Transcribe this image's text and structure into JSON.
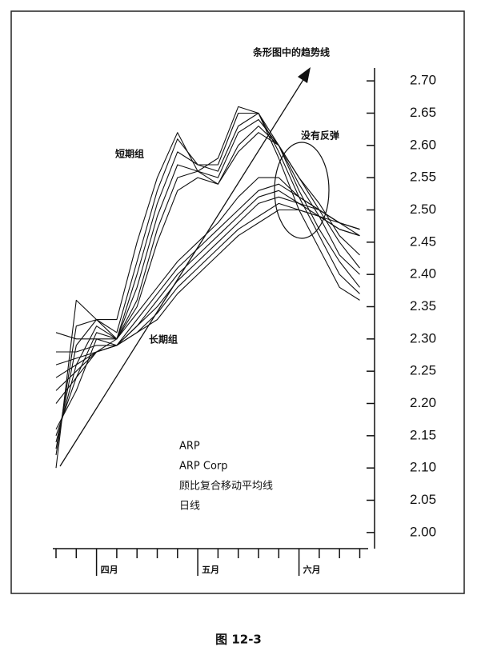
{
  "chart_data": {
    "type": "line",
    "color": "#111111",
    "categories": [
      null,
      null,
      "四月",
      null,
      null,
      null,
      null,
      "五月",
      null,
      null,
      null,
      null,
      "六月",
      null,
      null,
      null
    ],
    "ylim": [
      1.975,
      2.72
    ],
    "yticks": [
      {
        "value": 2.0,
        "label": "2.00"
      },
      2.05,
      {
        "value": 2.1,
        "label": "2.10"
      },
      2.15,
      {
        "value": 2.2,
        "label": "2.20"
      },
      2.25,
      {
        "value": 2.3,
        "label": "2.30"
      },
      2.35,
      {
        "value": 2.4,
        "label": "2.40"
      },
      2.45,
      {
        "value": 2.5,
        "label": "2.50"
      },
      2.55,
      {
        "value": 2.6,
        "label": "2.60"
      },
      2.65,
      {
        "value": 2.7,
        "label": "2.70"
      }
    ],
    "series": [
      {
        "values": [
          2.1,
          2.36,
          2.33,
          2.33,
          2.45,
          2.55,
          2.62,
          2.56,
          2.58,
          2.66,
          2.65,
          2.58,
          2.5,
          2.44,
          2.38,
          2.36
        ]
      },
      {
        "values": [
          2.12,
          2.32,
          2.33,
          2.31,
          2.42,
          2.53,
          2.61,
          2.57,
          2.57,
          2.65,
          2.65,
          2.59,
          2.52,
          2.46,
          2.4,
          2.37
        ]
      },
      {
        "values": [
          2.13,
          2.29,
          2.33,
          2.3,
          2.4,
          2.51,
          2.59,
          2.57,
          2.56,
          2.63,
          2.65,
          2.6,
          2.53,
          2.47,
          2.42,
          2.38
        ]
      },
      {
        "values": [
          2.14,
          2.26,
          2.32,
          2.3,
          2.38,
          2.49,
          2.57,
          2.56,
          2.55,
          2.62,
          2.64,
          2.6,
          2.54,
          2.49,
          2.43,
          2.4
        ]
      },
      {
        "values": [
          2.15,
          2.24,
          2.31,
          2.3,
          2.36,
          2.47,
          2.55,
          2.56,
          2.54,
          2.6,
          2.63,
          2.6,
          2.55,
          2.5,
          2.45,
          2.41
        ]
      },
      {
        "values": [
          2.16,
          2.22,
          2.3,
          2.3,
          2.35,
          2.45,
          2.53,
          2.55,
          2.54,
          2.59,
          2.62,
          2.6,
          2.55,
          2.51,
          2.46,
          2.43
        ]
      },
      {
        "values": [
          2.2,
          2.24,
          2.28,
          2.3,
          2.34,
          2.38,
          2.42,
          2.45,
          2.48,
          2.52,
          2.55,
          2.55,
          2.52,
          2.5,
          2.48,
          2.47
        ]
      },
      {
        "values": [
          2.22,
          2.25,
          2.28,
          2.29,
          2.33,
          2.37,
          2.41,
          2.44,
          2.47,
          2.5,
          2.53,
          2.54,
          2.52,
          2.5,
          2.48,
          2.47
        ]
      },
      {
        "values": [
          2.24,
          2.26,
          2.28,
          2.29,
          2.32,
          2.36,
          2.4,
          2.43,
          2.46,
          2.49,
          2.52,
          2.53,
          2.51,
          2.5,
          2.48,
          2.47
        ]
      },
      {
        "values": [
          2.26,
          2.27,
          2.28,
          2.29,
          2.32,
          2.35,
          2.39,
          2.42,
          2.45,
          2.48,
          2.51,
          2.52,
          2.51,
          2.49,
          2.48,
          2.46
        ]
      },
      {
        "values": [
          2.28,
          2.28,
          2.29,
          2.29,
          2.31,
          2.34,
          2.38,
          2.41,
          2.44,
          2.47,
          2.49,
          2.51,
          2.5,
          2.49,
          2.47,
          2.46
        ]
      },
      {
        "values": [
          2.31,
          2.3,
          2.3,
          2.29,
          2.31,
          2.33,
          2.37,
          2.4,
          2.43,
          2.46,
          2.48,
          2.5,
          2.5,
          2.49,
          2.47,
          2.46
        ]
      }
    ],
    "annotations": [
      "条形图中的趋势线",
      "没有反弹",
      "短期组",
      "长期组"
    ],
    "info_lines": [
      "ARP",
      "ARP Corp",
      "顾比复合移动平均线",
      "日线"
    ]
  },
  "caption": "图 12-3"
}
